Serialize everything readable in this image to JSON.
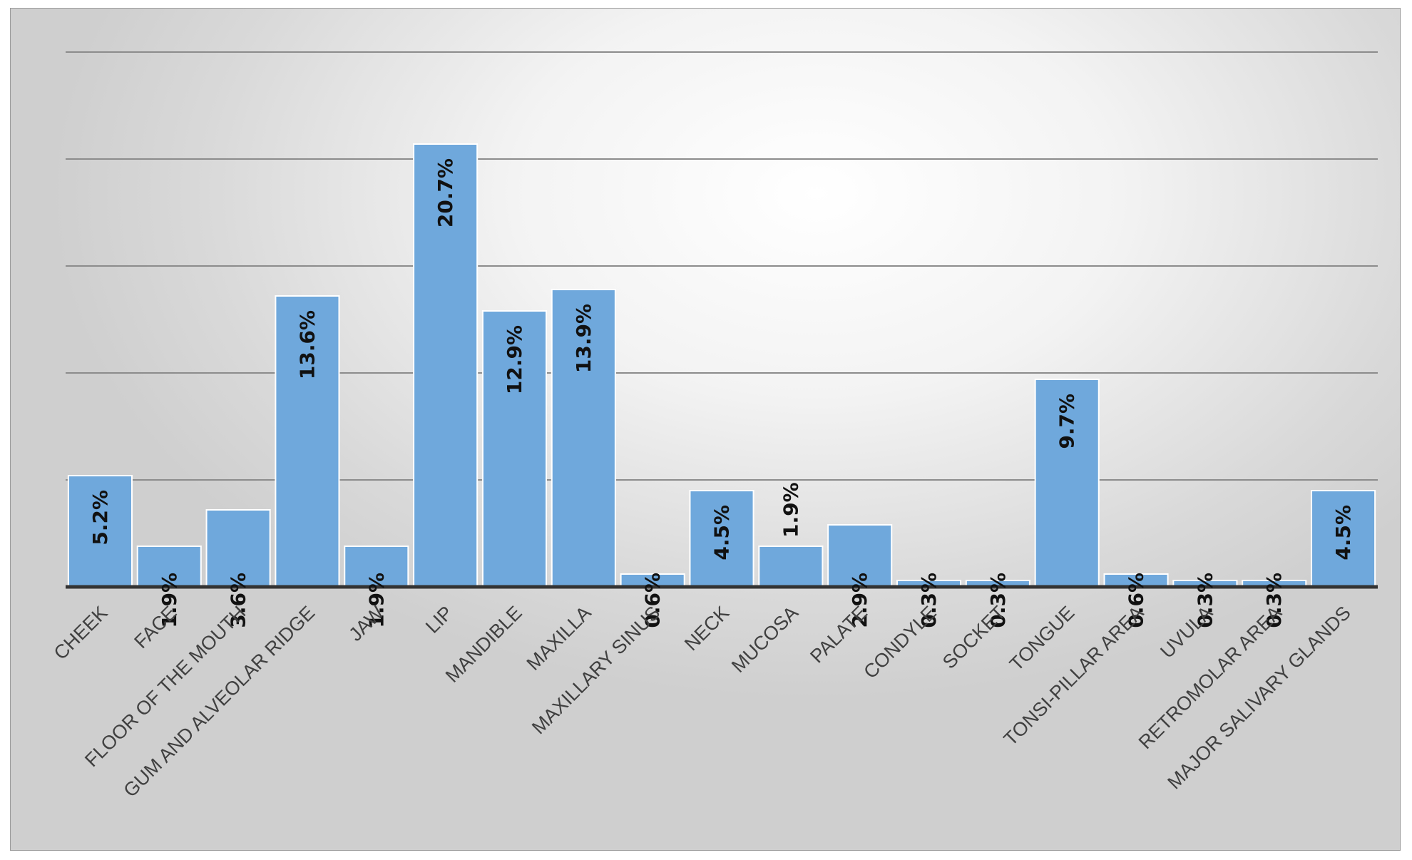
{
  "chart_data": {
    "type": "bar",
    "title": "",
    "xlabel": "",
    "ylabel": "",
    "ylim": [
      0,
      25
    ],
    "grid": true,
    "legend": "none",
    "categories": [
      "CHEEK",
      "FACE",
      "FLOOR OF THE MOUTH",
      "GUM AND ALVEOLAR RIDGE",
      "JAW",
      "LIP",
      "MANDIBLE",
      "MAXILLA",
      "MAXILLARY SINUS",
      "NECK",
      "MUCOSA",
      "PALATE",
      "CONDYLE",
      "SOCKET",
      "TONGUE",
      "TONSI-PILLAR AREA",
      "UVULA",
      "RETROMOLAR AREA",
      "MAJOR SALIVARY GLANDS"
    ],
    "values": [
      5.2,
      1.9,
      3.6,
      13.6,
      1.9,
      20.7,
      12.9,
      13.9,
      0.6,
      4.5,
      1.9,
      2.9,
      0.3,
      0.3,
      9.7,
      0.6,
      0.3,
      0.3,
      4.5
    ],
    "labels": [
      "5.2%",
      "1.9%",
      "3.6%",
      "13.6%",
      "1.9%",
      "20.7%",
      "12.9%",
      "13.9%",
      "0.6%",
      "4.5%",
      "1.9%",
      "2.9%",
      "0.3%",
      "0.3%",
      "9.7%",
      "0.6%",
      "0.3%",
      "0.3%",
      "4.5%"
    ],
    "colors": {
      "bar": "#6fa8dc",
      "bar_stroke": "#ffffff",
      "grid": "#8c8c8c",
      "axis": "#333333"
    }
  }
}
